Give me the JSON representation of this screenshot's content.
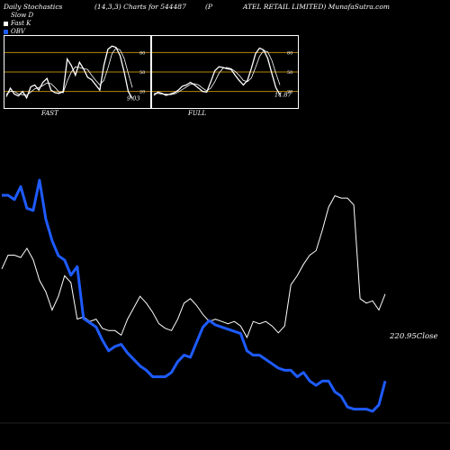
{
  "header": {
    "left": "Daily Stochastics",
    "middle": "(14,3,3) Charts for 544487",
    "right_a": "(P",
    "right_b": "ATEL RETAIL LIMITED) MunafaSutra.com"
  },
  "legend": [
    {
      "label": "Slow  D",
      "color": "#000000"
    },
    {
      "label": "Fast  K",
      "color": "#ffffff"
    },
    {
      "label": "OBV",
      "color": "#1e5bff"
    }
  ],
  "colors": {
    "background": "#000000",
    "line": "#ffffff",
    "grid": "#b8860b",
    "obv": "#1e5bff"
  },
  "chart_data": [
    {
      "type": "line",
      "name": "FAST",
      "label": "FAST",
      "ylim": [
        0,
        100
      ],
      "yticks": [
        20,
        50,
        80
      ],
      "grid_lines": [
        20,
        50,
        80
      ],
      "end_value_label": "9.03",
      "series": [
        {
          "name": "Fast K",
          "values": [
            12,
            25,
            16,
            13,
            20,
            10,
            27,
            30,
            22,
            34,
            40,
            22,
            18,
            17,
            20,
            70,
            60,
            45,
            65,
            55,
            42,
            38,
            30,
            22,
            60,
            85,
            90,
            88,
            75,
            50,
            20,
            9.03
          ]
        },
        {
          "name": "Slow D",
          "values": [
            16,
            20,
            20,
            16,
            15,
            14,
            19,
            24,
            26,
            29,
            33,
            32,
            26,
            19,
            18,
            36,
            50,
            58,
            57,
            55,
            54,
            45,
            37,
            30,
            37,
            56,
            78,
            87,
            84,
            71,
            48,
            26
          ]
        }
      ]
    },
    {
      "type": "line",
      "name": "FULL",
      "label": "FULL",
      "ylim": [
        0,
        100
      ],
      "yticks": [
        20,
        50,
        80
      ],
      "grid_lines": [
        20,
        50,
        80
      ],
      "end_value_label": "14.87",
      "series": [
        {
          "name": "Fast K",
          "values": [
            14,
            19,
            17,
            14,
            16,
            18,
            22,
            28,
            30,
            34,
            30,
            25,
            20,
            19,
            35,
            52,
            58,
            57,
            55,
            54,
            45,
            37,
            30,
            37,
            56,
            78,
            87,
            84,
            71,
            48,
            26,
            14.87
          ]
        },
        {
          "name": "Slow D",
          "values": [
            17,
            17,
            16,
            16,
            15,
            16,
            19,
            23,
            27,
            31,
            32,
            30,
            25,
            21,
            25,
            35,
            48,
            56,
            57,
            55,
            51,
            45,
            37,
            35,
            41,
            57,
            74,
            83,
            81,
            68,
            48,
            30
          ]
        }
      ]
    },
    {
      "type": "line",
      "name": "price-obv",
      "close_label": "220.95",
      "close_suffix": "Close",
      "x": [
        0,
        1,
        2,
        3,
        4,
        5,
        6,
        7,
        8,
        9,
        10,
        11,
        12,
        13,
        14,
        15,
        16,
        17,
        18,
        19,
        20,
        21,
        22,
        23,
        24,
        25,
        26,
        27,
        28,
        29,
        30,
        31,
        32,
        33,
        34,
        35,
        36,
        37,
        38,
        39,
        40,
        41,
        42,
        43,
        44,
        45,
        46,
        47,
        48,
        49,
        50,
        51,
        52,
        53,
        54,
        55,
        56,
        57,
        58,
        59,
        60,
        61
      ],
      "series": [
        {
          "name": "Close",
          "values": [
            232,
            238,
            238,
            237,
            241,
            236,
            227,
            222,
            214,
            220,
            229,
            226,
            210,
            211,
            209,
            210,
            206,
            205,
            205,
            203,
            210,
            215,
            220,
            217,
            213,
            208,
            206,
            205,
            210,
            217,
            219,
            216,
            212,
            209,
            210,
            209,
            208,
            209,
            207,
            202,
            209,
            208,
            209,
            207,
            204,
            207,
            225,
            229,
            234,
            238,
            240,
            249,
            259,
            264,
            263,
            263,
            260,
            219,
            217,
            218,
            214,
            221
          ]
        },
        {
          "name": "OBV",
          "values": [
            1.0,
            1.0,
            0.98,
            1.04,
            0.94,
            0.93,
            1.07,
            0.89,
            0.79,
            0.72,
            0.7,
            0.63,
            0.67,
            0.43,
            0.41,
            0.39,
            0.33,
            0.28,
            0.3,
            0.31,
            0.27,
            0.24,
            0.21,
            0.19,
            0.16,
            0.16,
            0.16,
            0.18,
            0.23,
            0.26,
            0.25,
            0.32,
            0.39,
            0.42,
            0.4,
            0.39,
            0.38,
            0.37,
            0.36,
            0.28,
            0.26,
            0.26,
            0.24,
            0.22,
            0.2,
            0.19,
            0.19,
            0.16,
            0.18,
            0.14,
            0.12,
            0.14,
            0.14,
            0.09,
            0.07,
            0.02,
            0.01,
            0.01,
            0.01,
            0.0,
            0.03,
            0.14
          ]
        }
      ]
    }
  ]
}
